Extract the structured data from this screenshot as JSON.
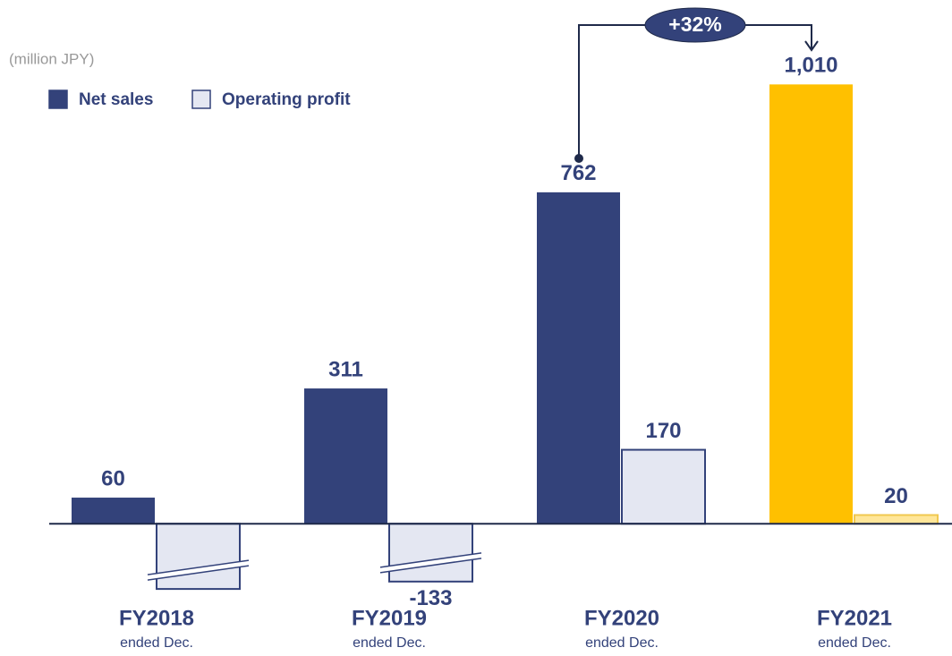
{
  "chart_data": {
    "type": "bar",
    "unit_label": "(million JPY)",
    "categories": [
      "FY2018",
      "FY2019",
      "FY2020",
      "FY2021"
    ],
    "category_notes": [
      "ended Dec.",
      "ended Dec.",
      "ended Dec.",
      "ended Dec."
    ],
    "series": [
      {
        "name": "Net sales",
        "color": "#33427a",
        "colors": [
          "#33427a",
          "#33427a",
          "#33427a",
          "#ffc000"
        ],
        "values": [
          60,
          311,
          762,
          1010
        ],
        "value_labels": [
          "60",
          "311",
          "762",
          "1,010"
        ]
      },
      {
        "name": "Operating profit",
        "color": "#e4e7f2",
        "colors": [
          "#e4e7f2",
          "#e4e7f2",
          "#e4e7f2",
          "#ffe699"
        ],
        "values": [
          -150,
          -133,
          170,
          20
        ],
        "value_labels": [
          null,
          "-133",
          "170",
          "20"
        ]
      }
    ],
    "annotation": "+32%",
    "ylim": [
      -300,
      1200
    ]
  }
}
